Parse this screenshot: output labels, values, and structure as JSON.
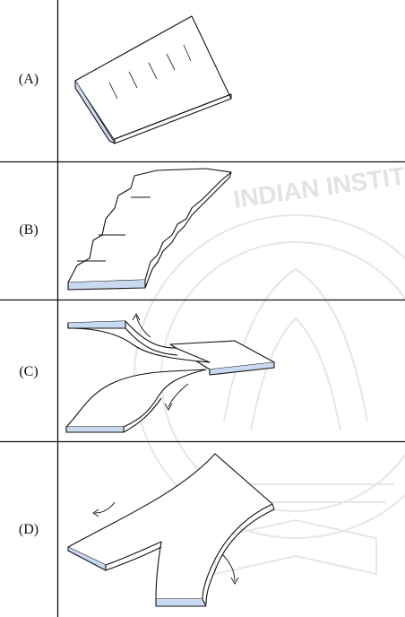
{
  "rows": [
    {
      "label": "(A)"
    },
    {
      "label": "(B)"
    },
    {
      "label": "(C)"
    },
    {
      "label": "(D)"
    }
  ],
  "watermark": {
    "text": "INDIAN INSTITU"
  },
  "colors": {
    "line": "#111111",
    "edge_fill": "#c9daf0",
    "watermark": "#dcdcdc"
  }
}
